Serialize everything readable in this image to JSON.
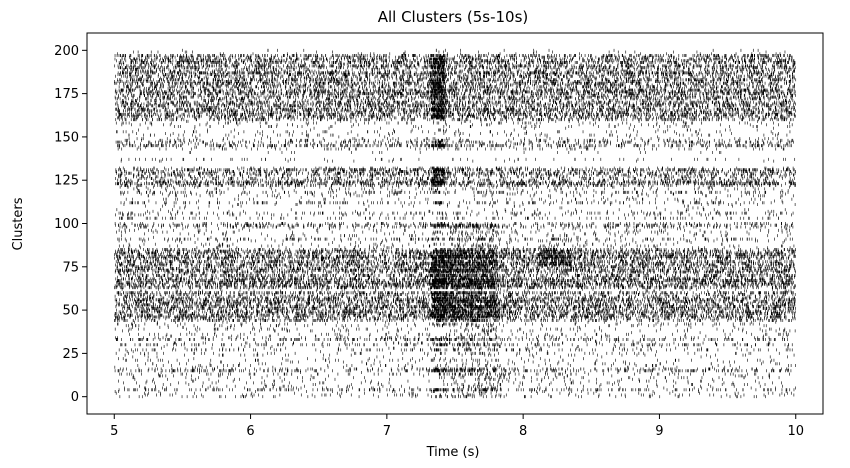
{
  "chart_data": {
    "type": "scatter",
    "title": "All Clusters (5s-10s)",
    "xlabel": "Time (s)",
    "ylabel": "Clusters",
    "xlim": [
      4.8,
      10.2
    ],
    "ylim": [
      -10,
      210
    ],
    "xticks": [
      5,
      6,
      7,
      8,
      9,
      10
    ],
    "yticks": [
      0,
      25,
      50,
      75,
      100,
      125,
      150,
      175,
      200
    ],
    "grid": false,
    "legend": "none",
    "marker": "|",
    "color": "#000000",
    "data_description": "Raster of spike times for ~200 clusters between 5 s and 10 s; dense rows near clusters 45-85, 100, 125-130, 145-150, 165-195; burst of activity around 7.35-7.8 s.",
    "cluster_range": [
      0,
      200
    ],
    "time_range": [
      5.0,
      10.0
    ],
    "dense_bands": [
      [
        44,
        60
      ],
      [
        63,
        85
      ],
      [
        98,
        101
      ],
      [
        122,
        131
      ],
      [
        145,
        148
      ],
      [
        160,
        197
      ]
    ],
    "burst_windows": [
      [
        7.32,
        7.42
      ],
      [
        7.4,
        7.8
      ],
      [
        8.1,
        8.35
      ]
    ]
  }
}
